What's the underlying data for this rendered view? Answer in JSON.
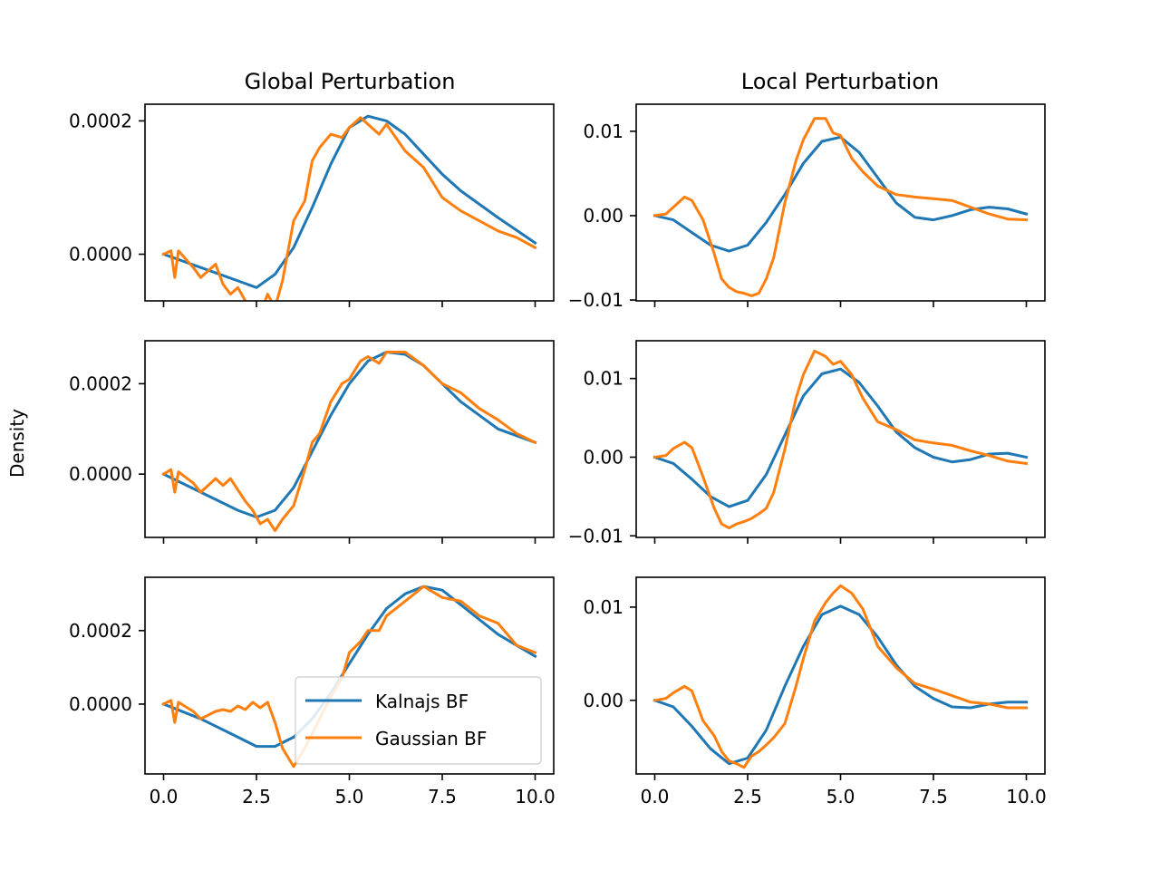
{
  "figure": {
    "ylabel": "Density",
    "column_titles": [
      "Global Perturbation",
      "Local Perturbation"
    ],
    "legend": {
      "placement": "lower-right",
      "entries": [
        {
          "label": "Kalnajs BF",
          "color": "#1f77b4"
        },
        {
          "label": "Gaussian BF",
          "color": "#ff7f0e"
        }
      ]
    }
  },
  "chart_data": [
    {
      "type": "line",
      "panel": "row1-global",
      "title": "Global Perturbation",
      "xlim": [
        -0.5,
        10.5
      ],
      "ylim": [
        -7e-05,
        0.000225
      ],
      "xticks": [
        "0.0",
        "2.5",
        "5.0",
        "7.5",
        "10.0"
      ],
      "show_xtick_labels": false,
      "yticks": [
        {
          "v": 0.0,
          "label": "0.0000"
        },
        {
          "v": 0.0002,
          "label": "0.0002"
        }
      ],
      "series": [
        {
          "name": "Kalnajs BF",
          "color": "#1f77b4",
          "x": [
            0,
            1,
            2,
            2.5,
            3,
            3.5,
            4,
            4.5,
            5,
            5.5,
            6,
            6.5,
            7,
            7.5,
            8,
            9,
            10
          ],
          "y": [
            0,
            -2e-05,
            -4e-05,
            -5e-05,
            -3e-05,
            1e-05,
            7e-05,
            0.000135,
            0.00019,
            0.000207,
            0.0002,
            0.00018,
            0.00015,
            0.00012,
            9.5e-05,
            5.5e-05,
            1.7e-05
          ]
        },
        {
          "name": "Gaussian BF",
          "color": "#ff7f0e",
          "x": [
            0,
            0.2,
            0.3,
            0.4,
            0.8,
            1.0,
            1.4,
            1.6,
            1.8,
            2.0,
            2.2,
            2.4,
            2.6,
            2.8,
            3.0,
            3.2,
            3.5,
            3.8,
            4.0,
            4.2,
            4.5,
            4.8,
            5.0,
            5.3,
            5.5,
            5.8,
            6.0,
            6.5,
            7.0,
            7.5,
            8.0,
            8.5,
            9.0,
            9.5,
            10
          ],
          "y": [
            0,
            5e-06,
            -3.5e-05,
            5e-06,
            -2e-05,
            -3.5e-05,
            -1.5e-05,
            -4.5e-05,
            -6e-05,
            -5e-05,
            -7e-05,
            -8.5e-05,
            -9e-05,
            -6e-05,
            -8e-05,
            -4e-05,
            5e-05,
            8e-05,
            0.00014,
            0.00016,
            0.00018,
            0.000175,
            0.00019,
            0.000205,
            0.000195,
            0.00018,
            0.000195,
            0.000155,
            0.00013,
            8.5e-05,
            6.5e-05,
            5e-05,
            3.5e-05,
            2.5e-05,
            1e-05
          ]
        }
      ]
    },
    {
      "type": "line",
      "panel": "row1-local",
      "title": "Local Perturbation",
      "xlim": [
        -0.5,
        10.5
      ],
      "ylim": [
        -0.0101,
        0.0132
      ],
      "xticks": [
        "0.0",
        "2.5",
        "5.0",
        "7.5",
        "10.0"
      ],
      "show_xtick_labels": false,
      "yticks": [
        {
          "v": -0.01,
          "label": "−0.01"
        },
        {
          "v": 0.0,
          "label": "0.00"
        },
        {
          "v": 0.01,
          "label": "0.01"
        }
      ],
      "series": [
        {
          "name": "Kalnajs BF",
          "color": "#1f77b4",
          "x": [
            0,
            0.5,
            1,
            1.5,
            2,
            2.5,
            3,
            3.5,
            4,
            4.5,
            5,
            5.5,
            6,
            6.5,
            7,
            7.5,
            8,
            8.5,
            9,
            9.5,
            10
          ],
          "y": [
            0,
            -0.0005,
            -0.002,
            -0.0035,
            -0.0042,
            -0.0035,
            -0.0008,
            0.0025,
            0.0062,
            0.0088,
            0.0093,
            0.0075,
            0.0045,
            0.0015,
            -0.0002,
            -0.0005,
            0,
            0.0007,
            0.001,
            0.0008,
            0.0002
          ]
        },
        {
          "name": "Gaussian BF",
          "color": "#ff7f0e",
          "x": [
            0,
            0.3,
            0.5,
            0.8,
            1.0,
            1.3,
            1.6,
            1.8,
            2.0,
            2.2,
            2.4,
            2.6,
            2.8,
            3.0,
            3.2,
            3.5,
            3.8,
            4.0,
            4.3,
            4.6,
            4.8,
            5.0,
            5.3,
            5.6,
            6.0,
            6.5,
            7.0,
            7.5,
            8.0,
            8.5,
            9.0,
            9.5,
            10
          ],
          "y": [
            0,
            0.0002,
            0.001,
            0.0022,
            0.0018,
            -0.0005,
            -0.0045,
            -0.0075,
            -0.0085,
            -0.009,
            -0.0092,
            -0.0095,
            -0.0092,
            -0.0075,
            -0.005,
            0.0015,
            0.0065,
            0.009,
            0.0115,
            0.0115,
            0.0098,
            0.0095,
            0.0068,
            0.0052,
            0.0035,
            0.0025,
            0.0022,
            0.002,
            0.0018,
            0.001,
            0.0002,
            -0.0004,
            -0.0005
          ]
        }
      ]
    },
    {
      "type": "line",
      "panel": "row2-global",
      "title": "",
      "xlim": [
        -0.5,
        10.5
      ],
      "ylim": [
        -0.00014,
        0.000295
      ],
      "xticks": [
        "0.0",
        "2.5",
        "5.0",
        "7.5",
        "10.0"
      ],
      "show_xtick_labels": false,
      "yticks": [
        {
          "v": 0.0,
          "label": "0.0000"
        },
        {
          "v": 0.0002,
          "label": "0.0002"
        }
      ],
      "series": [
        {
          "name": "Kalnajs BF",
          "color": "#1f77b4",
          "x": [
            0,
            1,
            2,
            2.5,
            3,
            3.5,
            4,
            4.5,
            5,
            5.5,
            6,
            6.5,
            7,
            7.5,
            8,
            9,
            10
          ],
          "y": [
            0,
            -4e-05,
            -8e-05,
            -9.5e-05,
            -8e-05,
            -3e-05,
            5e-05,
            0.00013,
            0.0002,
            0.00025,
            0.00027,
            0.000265,
            0.00024,
            0.0002,
            0.00016,
            0.0001,
            7e-05
          ]
        },
        {
          "name": "Gaussian BF",
          "color": "#ff7f0e",
          "x": [
            0,
            0.2,
            0.3,
            0.4,
            0.8,
            1.0,
            1.4,
            1.6,
            1.8,
            2.0,
            2.2,
            2.4,
            2.6,
            2.8,
            3.0,
            3.2,
            3.5,
            3.8,
            4.0,
            4.2,
            4.5,
            4.8,
            5.0,
            5.3,
            5.5,
            5.8,
            6.0,
            6.5,
            7.0,
            7.5,
            8.0,
            8.5,
            9.0,
            9.5,
            10
          ],
          "y": [
            0,
            1e-05,
            -4e-05,
            5e-06,
            -2e-05,
            -4e-05,
            -1e-05,
            -2.5e-05,
            -1e-05,
            -3.5e-05,
            -6e-05,
            -8e-05,
            -0.00011,
            -0.0001,
            -0.000125,
            -0.0001,
            -7e-05,
            1e-05,
            7e-05,
            9e-05,
            0.00016,
            0.0002,
            0.00021,
            0.00025,
            0.00026,
            0.000245,
            0.00027,
            0.00027,
            0.00024,
            0.0002,
            0.00018,
            0.000145,
            0.00012,
            9e-05,
            7e-05
          ]
        }
      ]
    },
    {
      "type": "line",
      "panel": "row2-local",
      "title": "",
      "xlim": [
        -0.5,
        10.5
      ],
      "ylim": [
        -0.0102,
        0.0148
      ],
      "xticks": [
        "0.0",
        "2.5",
        "5.0",
        "7.5",
        "10.0"
      ],
      "show_xtick_labels": false,
      "yticks": [
        {
          "v": -0.01,
          "label": "−0.01"
        },
        {
          "v": 0.0,
          "label": "0.00"
        },
        {
          "v": 0.01,
          "label": "0.01"
        }
      ],
      "series": [
        {
          "name": "Kalnajs BF",
          "color": "#1f77b4",
          "x": [
            0,
            0.5,
            1,
            1.5,
            2,
            2.5,
            3,
            3.5,
            4,
            4.5,
            5,
            5.5,
            6,
            6.5,
            7,
            7.5,
            8,
            8.5,
            9,
            9.5,
            10
          ],
          "y": [
            0,
            -0.0008,
            -0.0028,
            -0.005,
            -0.0063,
            -0.0055,
            -0.0022,
            0.0028,
            0.0078,
            0.0106,
            0.0112,
            0.0095,
            0.0065,
            0.0032,
            0.0012,
            0,
            -0.0006,
            -0.0003,
            0.0004,
            0.0005,
            0
          ]
        },
        {
          "name": "Gaussian BF",
          "color": "#ff7f0e",
          "x": [
            0,
            0.3,
            0.5,
            0.8,
            1.0,
            1.3,
            1.6,
            1.8,
            2.0,
            2.2,
            2.4,
            2.6,
            2.8,
            3.0,
            3.2,
            3.5,
            3.8,
            4.0,
            4.3,
            4.6,
            4.8,
            5.0,
            5.3,
            5.6,
            6.0,
            6.5,
            7.0,
            7.5,
            8.0,
            8.5,
            9.0,
            9.5,
            10
          ],
          "y": [
            0,
            0.0002,
            0.0011,
            0.0019,
            0.0012,
            -0.0025,
            -0.0065,
            -0.0085,
            -0.009,
            -0.0085,
            -0.0082,
            -0.0078,
            -0.0072,
            -0.0065,
            -0.0045,
            0.001,
            0.0075,
            0.0105,
            0.0135,
            0.0128,
            0.0118,
            0.0122,
            0.0105,
            0.0075,
            0.0045,
            0.0035,
            0.0022,
            0.0018,
            0.0015,
            0.0008,
            0.0002,
            -0.0005,
            -0.0008
          ]
        }
      ]
    },
    {
      "type": "line",
      "panel": "row3-global",
      "title": "",
      "xlim": [
        -0.5,
        10.5
      ],
      "ylim": [
        -0.00019,
        0.000345
      ],
      "xticks": [
        "0.0",
        "2.5",
        "5.0",
        "7.5",
        "10.0"
      ],
      "show_xtick_labels": true,
      "yticks": [
        {
          "v": 0.0,
          "label": "0.0000"
        },
        {
          "v": 0.0002,
          "label": "0.0002"
        }
      ],
      "series": [
        {
          "name": "Kalnajs BF",
          "color": "#1f77b4",
          "x": [
            0,
            1,
            2,
            2.5,
            3,
            3.5,
            4,
            4.5,
            5,
            5.5,
            6,
            6.5,
            7,
            7.5,
            8,
            9,
            10
          ],
          "y": [
            0,
            -4e-05,
            -9e-05,
            -0.000115,
            -0.000115,
            -9e-05,
            -4e-05,
            3e-05,
            0.00011,
            0.00019,
            0.00026,
            0.0003,
            0.00032,
            0.00031,
            0.00027,
            0.00019,
            0.00013
          ]
        },
        {
          "name": "Gaussian BF",
          "color": "#ff7f0e",
          "x": [
            0,
            0.2,
            0.3,
            0.4,
            0.8,
            1.0,
            1.4,
            1.6,
            1.8,
            2.0,
            2.2,
            2.4,
            2.6,
            2.8,
            3.0,
            3.2,
            3.5,
            3.8,
            4.0,
            4.2,
            4.5,
            4.8,
            5.0,
            5.3,
            5.5,
            5.8,
            6.0,
            6.5,
            7.0,
            7.5,
            8.0,
            8.5,
            9.0,
            9.5,
            10
          ],
          "y": [
            0,
            1e-05,
            -5e-05,
            5e-06,
            -2e-05,
            -4e-05,
            -2e-05,
            -1.5e-05,
            -2e-05,
            -5e-06,
            -1.5e-05,
            5e-06,
            -1e-05,
            5e-06,
            -5e-05,
            -0.00012,
            -0.00017,
            -0.00012,
            -8e-05,
            -4e-05,
            2e-05,
            7e-05,
            0.00014,
            0.00017,
            0.0002,
            0.0002,
            0.00024,
            0.00028,
            0.00032,
            0.00029,
            0.00028,
            0.00024,
            0.00022,
            0.00016,
            0.00014
          ]
        }
      ]
    },
    {
      "type": "line",
      "panel": "row3-local",
      "title": "",
      "xlim": [
        -0.5,
        10.5
      ],
      "ylim": [
        -0.0079,
        0.0132
      ],
      "xticks": [
        "0.0",
        "2.5",
        "5.0",
        "7.5",
        "10.0"
      ],
      "show_xtick_labels": true,
      "yticks": [
        {
          "v": 0.0,
          "label": "0.00"
        },
        {
          "v": 0.01,
          "label": "0.01"
        }
      ],
      "series": [
        {
          "name": "Kalnajs BF",
          "color": "#1f77b4",
          "x": [
            0,
            0.5,
            1,
            1.5,
            2,
            2.5,
            3,
            3.5,
            4,
            4.5,
            5,
            5.5,
            6,
            6.5,
            7,
            7.5,
            8,
            8.5,
            9,
            9.5,
            10
          ],
          "y": [
            0,
            -0.0007,
            -0.0028,
            -0.0052,
            -0.0068,
            -0.0062,
            -0.0032,
            0.0015,
            0.0058,
            0.0092,
            0.0101,
            0.0092,
            0.0068,
            0.0038,
            0.0015,
            0.0002,
            -0.0007,
            -0.0008,
            -0.0004,
            -0.0002,
            -0.0002
          ]
        },
        {
          "name": "Gaussian BF",
          "color": "#ff7f0e",
          "x": [
            0,
            0.3,
            0.5,
            0.8,
            1.0,
            1.3,
            1.6,
            1.8,
            2.0,
            2.2,
            2.4,
            2.6,
            2.8,
            3.0,
            3.2,
            3.5,
            3.8,
            4.0,
            4.3,
            4.6,
            4.8,
            5.0,
            5.3,
            5.6,
            6.0,
            6.5,
            7.0,
            7.5,
            8.0,
            8.5,
            9.0,
            9.5,
            10
          ],
          "y": [
            0,
            0.0002,
            0.0008,
            0.0015,
            0.001,
            -0.0022,
            -0.0038,
            -0.0055,
            -0.0065,
            -0.0068,
            -0.0072,
            -0.006,
            -0.0055,
            -0.0048,
            -0.004,
            -0.0025,
            0.0015,
            0.0045,
            0.0085,
            0.0105,
            0.0115,
            0.0123,
            0.0115,
            0.0098,
            0.0058,
            0.0035,
            0.0018,
            0.0012,
            0.0005,
            -0.0002,
            -0.0004,
            -0.0008,
            -0.0008
          ]
        }
      ]
    }
  ]
}
